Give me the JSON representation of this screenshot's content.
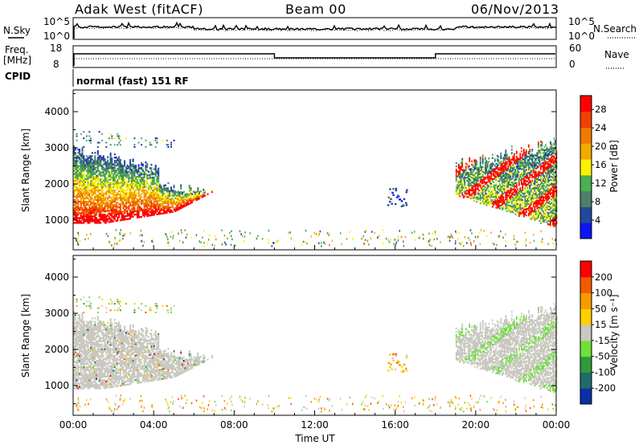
{
  "header": {
    "title": "Adak West (fitACF)",
    "beam": "Beam 00",
    "date": "06/Nov/2013"
  },
  "panels": {
    "noise": {
      "left_label": "N.Sky",
      "right_label": "N.Search",
      "left_ticks": [
        "10^5",
        "10^0"
      ],
      "right_ticks": [
        "10^5",
        "10^0"
      ]
    },
    "freq": {
      "left_label_1": "Freq.",
      "left_label_2": "[MHz]",
      "right_label": "Nave",
      "left_ticks": [
        "18",
        "8"
      ],
      "right_ticks": [
        "60",
        "0"
      ],
      "freq_mhz_min": 8,
      "freq_mhz_max": 18,
      "nave_min": 0,
      "nave_max": 60
    },
    "cpid": {
      "label": "CPID",
      "value": "normal (fast) 151 RF"
    }
  },
  "chart_data": [
    {
      "type": "heatmap",
      "name": "power",
      "ylabel": "Slant Range [km]",
      "xlabel": "",
      "ylim": [
        180,
        4600
      ],
      "yticks": [
        1000,
        2000,
        3000,
        4000
      ],
      "xlim_hours": [
        0,
        24
      ],
      "colorbar": {
        "label": "Power [dB]",
        "ticks": [
          4,
          8,
          12,
          16,
          20,
          24,
          28
        ],
        "min": 0,
        "max": 31,
        "colors": [
          "#0a16f2",
          "#22479c",
          "#4e8069",
          "#4bb04f",
          "#fff000",
          "#f2a900",
          "#f07b00",
          "#f24000",
          "#ff0000"
        ]
      },
      "features": [
        {
          "region": "morning_echo",
          "hours": [
            0.0,
            7.2
          ],
          "range_km": [
            850,
            3500
          ],
          "peak_db": 28
        },
        {
          "region": "midday_patch",
          "hours": [
            15.6,
            16.7
          ],
          "range_km": [
            1300,
            1900
          ],
          "peak_db": 8
        },
        {
          "region": "evening_echo",
          "hours": [
            19.0,
            24.0
          ],
          "range_km": [
            800,
            3200
          ],
          "peak_db": 28
        },
        {
          "region": "near_range_scatter",
          "hours": [
            0.0,
            24.0
          ],
          "range_km": [
            250,
            700
          ],
          "peak_db": 16
        }
      ]
    },
    {
      "type": "heatmap",
      "name": "velocity",
      "ylabel": "Slant Range [km]",
      "xlabel": "Time UT",
      "ylim": [
        180,
        4600
      ],
      "yticks": [
        1000,
        2000,
        3000,
        4000
      ],
      "xticks": [
        "00:00",
        "04:00",
        "08:00",
        "12:00",
        "16:00",
        "20:00",
        "00:00"
      ],
      "xlim_hours": [
        0,
        24
      ],
      "colorbar": {
        "label": "Velocity [m s⁻¹]",
        "ticks": [
          200,
          100,
          50,
          15,
          -15,
          -50,
          -100,
          -200
        ],
        "colors": [
          "#0a2ea8",
          "#1f6b6b",
          "#2f9a3c",
          "#6fe03a",
          "#c9c9c0",
          "#ffd000",
          "#f79a00",
          "#f35a00",
          "#ff0000"
        ]
      }
    }
  ]
}
